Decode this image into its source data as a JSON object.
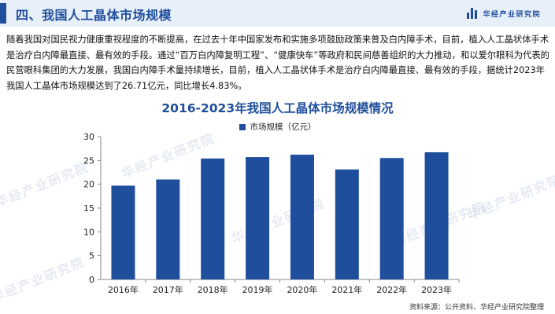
{
  "header": {
    "title": "四、我国人工晶体市场规模",
    "logo_text": "华经产业研究院"
  },
  "paragraph": "随着我国对国民视力健康重视程度的不断提高，在过去十年中国家发布和实施多项鼓励政策来普及白内障手术，目前，植入人工晶状体手术是治疗白内障最直接、最有效的手段。通过“百万白内障复明工程”、“健康快车”等政府和民间慈善组织的大力推动，和以爱尔眼科为代表的民营眼科集团的大力发展，我国白内障手术量持续增长，目前，植入人工晶状体手术是治疗白内障最直接、最有效的手段，据统计2023年我国人工晶体市场规模达到了26.71亿元，同比增长4.83%。",
  "watermark": "华经产业研究院",
  "source": "资料来源：公开资料、华经产业研究院整理",
  "chart_data": {
    "type": "bar",
    "title": "2016-2023年我国人工晶体市场规模情况",
    "categories": [
      "2016年",
      "2017年",
      "2018年",
      "2019年",
      "2020年",
      "2021年",
      "2022年",
      "2023年"
    ],
    "series": [
      {
        "name": "市场规模（亿元）",
        "values": [
          19.7,
          21.0,
          25.4,
          25.7,
          26.2,
          23.1,
          25.5,
          26.71
        ]
      }
    ],
    "ylim": [
      0,
      30
    ],
    "yticks": [
      0,
      5,
      10,
      15,
      20,
      25,
      30
    ],
    "grid": false,
    "legend": "top",
    "color": "#1f4e9c"
  }
}
